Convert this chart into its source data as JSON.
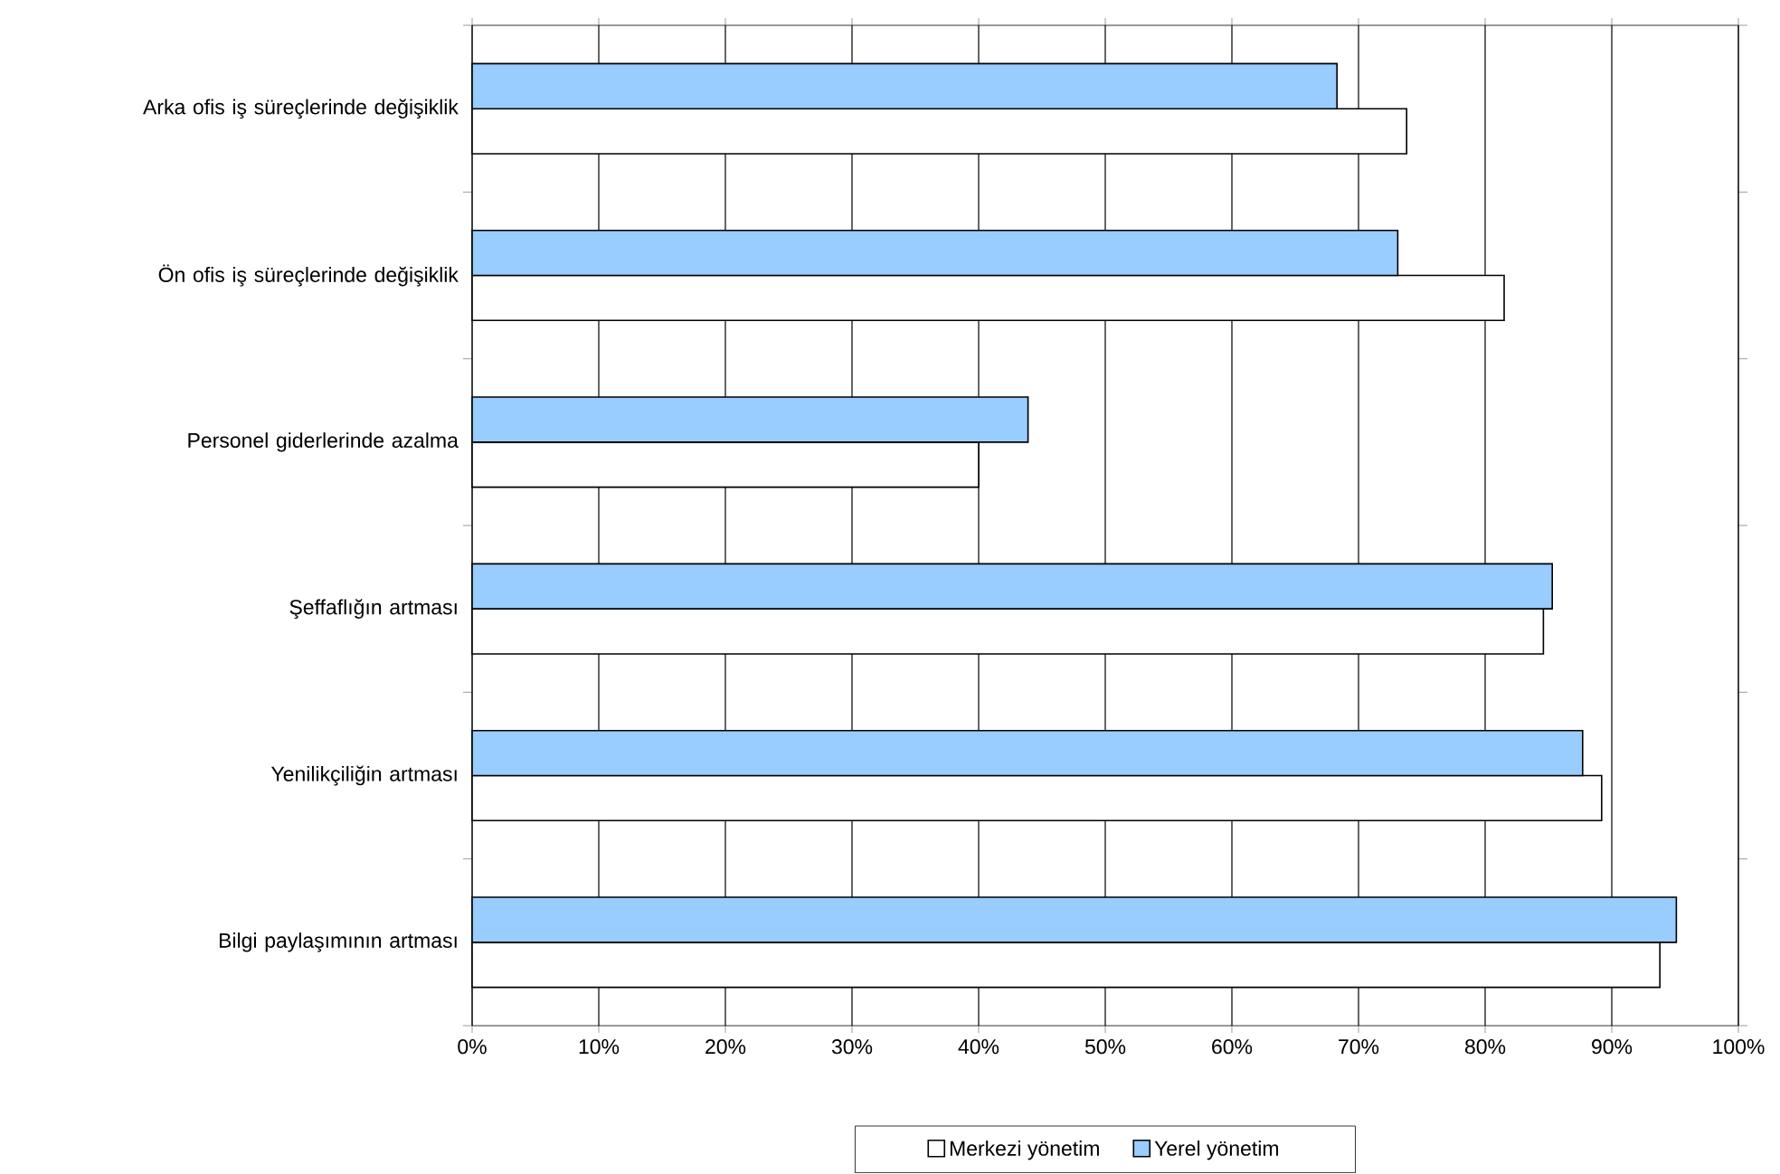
{
  "chart_data": {
    "type": "bar",
    "orientation": "horizontal",
    "categories": [
      "Arka ofis iş süreçlerinde değişiklik",
      "Ön ofis iş süreçlerinde değişiklik",
      "Personel giderlerinde azalma",
      "Şeffaflığın artması",
      "Yenilikçiliğin artması",
      "Bilgi paylaşımının artması"
    ],
    "series": [
      {
        "name": "Merkezi yönetim",
        "color": "#ffffff",
        "values": [
          73.8,
          81.5,
          40,
          84.6,
          89.2,
          93.8
        ]
      },
      {
        "name": "Yerel yönetim",
        "color": "#99ccff",
        "values": [
          68.3,
          73.1,
          43.9,
          85.3,
          87.7,
          95.1
        ]
      }
    ],
    "xlim": [
      0,
      100
    ],
    "xticks": [
      {
        "value": 0,
        "label": "0%"
      },
      {
        "value": 10,
        "label": "10%"
      },
      {
        "value": 20,
        "label": "20%"
      },
      {
        "value": 30,
        "label": "30%"
      },
      {
        "value": 40,
        "label": "40%"
      },
      {
        "value": 50,
        "label": "50%"
      },
      {
        "value": 60,
        "label": "60%"
      },
      {
        "value": 70,
        "label": "70%"
      },
      {
        "value": 80,
        "label": "80%"
      },
      {
        "value": 90,
        "label": "90%"
      },
      {
        "value": 100,
        "label": "100%"
      }
    ],
    "grid": "x",
    "legend": "bottom"
  }
}
